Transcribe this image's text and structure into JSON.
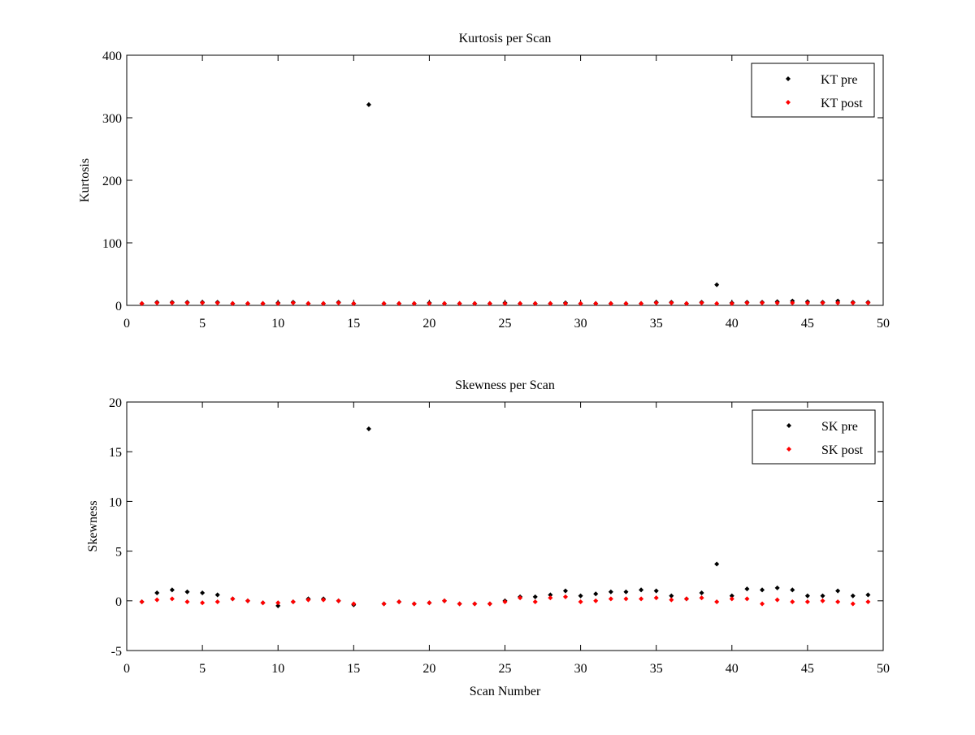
{
  "chart_data": [
    {
      "type": "scatter",
      "title": "Kurtosis per Scan",
      "xlabel": "",
      "ylabel": "Kurtosis",
      "xlim": [
        0,
        50
      ],
      "ylim": [
        0,
        400
      ],
      "xticks": [
        "0",
        "5",
        "10",
        "15",
        "20",
        "25",
        "30",
        "35",
        "40",
        "45",
        "50"
      ],
      "yticks": [
        "0",
        "100",
        "200",
        "300",
        "400"
      ],
      "legend_position": "top-right",
      "series": [
        {
          "name": "KT pre",
          "color": "#000000",
          "x": [
            1,
            2,
            3,
            4,
            5,
            6,
            7,
            8,
            9,
            10,
            11,
            12,
            13,
            14,
            15,
            16,
            17,
            18,
            19,
            20,
            21,
            22,
            23,
            24,
            25,
            26,
            27,
            28,
            29,
            30,
            31,
            32,
            33,
            34,
            35,
            36,
            37,
            38,
            39,
            40,
            41,
            42,
            43,
            44,
            45,
            46,
            47,
            48,
            49
          ],
          "values": [
            3,
            5,
            5,
            5,
            5,
            5,
            3,
            3,
            3,
            4,
            5,
            3,
            3,
            5,
            3,
            321,
            3,
            3,
            3,
            4,
            3,
            3,
            3,
            3,
            4,
            3,
            3,
            3,
            4,
            3,
            3,
            3,
            3,
            3,
            5,
            5,
            3,
            5,
            33,
            4,
            5,
            5,
            6,
            7,
            6,
            5,
            7,
            5,
            5
          ]
        },
        {
          "name": "KT post",
          "color": "#ff0000",
          "x": [
            1,
            2,
            3,
            4,
            5,
            6,
            7,
            8,
            9,
            10,
            11,
            12,
            13,
            14,
            15,
            16,
            17,
            18,
            19,
            20,
            21,
            22,
            23,
            24,
            25,
            26,
            27,
            28,
            29,
            30,
            31,
            32,
            33,
            34,
            35,
            36,
            37,
            38,
            39,
            40,
            41,
            42,
            43,
            44,
            45,
            46,
            47,
            48,
            49
          ],
          "values": [
            3,
            4,
            4,
            4,
            4,
            4,
            3,
            3,
            3,
            3,
            4,
            3,
            3,
            4,
            3,
            null,
            3,
            3,
            3,
            3,
            3,
            3,
            3,
            3,
            3,
            3,
            3,
            3,
            3,
            3,
            3,
            3,
            3,
            3,
            4,
            4,
            3,
            4,
            3,
            3,
            4,
            4,
            4,
            4,
            4,
            4,
            4,
            4,
            4
          ]
        }
      ]
    },
    {
      "type": "scatter",
      "title": "Skewness per Scan",
      "xlabel": "Scan Number",
      "ylabel": "Skewness",
      "xlim": [
        0,
        50
      ],
      "ylim": [
        -5,
        20
      ],
      "xticks": [
        "0",
        "5",
        "10",
        "15",
        "20",
        "25",
        "30",
        "35",
        "40",
        "45",
        "50"
      ],
      "yticks": [
        "-5",
        "0",
        "5",
        "10",
        "15",
        "20"
      ],
      "legend_position": "top-right",
      "series": [
        {
          "name": "SK pre",
          "color": "#000000",
          "x": [
            1,
            2,
            3,
            4,
            5,
            6,
            7,
            8,
            9,
            10,
            11,
            12,
            13,
            14,
            15,
            16,
            17,
            18,
            19,
            20,
            21,
            22,
            23,
            24,
            25,
            26,
            27,
            28,
            29,
            30,
            31,
            32,
            33,
            34,
            35,
            36,
            37,
            38,
            39,
            40,
            41,
            42,
            43,
            44,
            45,
            46,
            47,
            48,
            49
          ],
          "values": [
            -0.1,
            0.8,
            1.1,
            0.9,
            0.8,
            0.6,
            0.2,
            0.0,
            -0.2,
            -0.5,
            -0.1,
            0.2,
            0.2,
            0.0,
            -0.4,
            17.3,
            -0.3,
            -0.1,
            -0.3,
            -0.2,
            0.0,
            -0.3,
            -0.3,
            -0.3,
            0.0,
            0.4,
            0.4,
            0.6,
            1.0,
            0.5,
            0.7,
            0.9,
            0.9,
            1.1,
            1.0,
            0.5,
            0.2,
            0.8,
            3.7,
            0.5,
            1.2,
            1.1,
            1.3,
            1.1,
            0.5,
            0.5,
            1.0,
            0.5,
            0.6
          ]
        },
        {
          "name": "SK post",
          "color": "#ff0000",
          "x": [
            1,
            2,
            3,
            4,
            5,
            6,
            7,
            8,
            9,
            10,
            11,
            12,
            13,
            14,
            15,
            16,
            17,
            18,
            19,
            20,
            21,
            22,
            23,
            24,
            25,
            26,
            27,
            28,
            29,
            30,
            31,
            32,
            33,
            34,
            35,
            36,
            37,
            38,
            39,
            40,
            41,
            42,
            43,
            44,
            45,
            46,
            47,
            48,
            49
          ],
          "values": [
            -0.1,
            0.1,
            0.2,
            -0.1,
            -0.2,
            -0.1,
            0.2,
            0.0,
            -0.2,
            -0.2,
            -0.1,
            0.1,
            0.1,
            0.0,
            -0.3,
            null,
            -0.3,
            -0.1,
            -0.3,
            -0.2,
            0.0,
            -0.3,
            -0.3,
            -0.3,
            -0.1,
            0.3,
            -0.1,
            0.3,
            0.4,
            -0.1,
            0.0,
            0.2,
            0.2,
            0.2,
            0.3,
            0.1,
            0.2,
            0.3,
            -0.1,
            0.2,
            0.2,
            -0.3,
            0.1,
            -0.1,
            -0.1,
            0.0,
            -0.1,
            -0.3,
            -0.1
          ]
        }
      ]
    }
  ]
}
